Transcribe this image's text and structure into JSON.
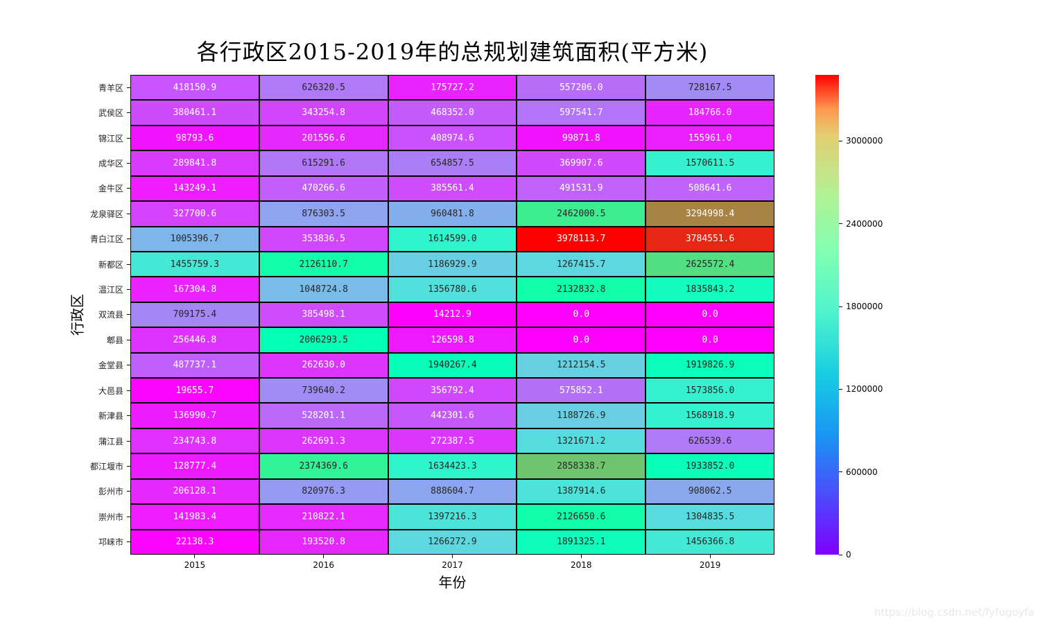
{
  "chart_data": {
    "type": "heatmap",
    "title": "各行政区2015-2019年的总规划建筑面积(平方米)",
    "xlabel": "年份",
    "ylabel": "行政区",
    "colormap": "rainbow",
    "vmin": 0,
    "vmax": 3978113.7,
    "categories": [
      "2015",
      "2016",
      "2017",
      "2018",
      "2019"
    ],
    "rows": [
      "青羊区",
      "武侯区",
      "锦江区",
      "成华区",
      "金牛区",
      "龙泉驿区",
      "青白江区",
      "新都区",
      "温江区",
      "双流县",
      "郫县",
      "金堂县",
      "大邑县",
      "新津县",
      "蒲江县",
      "都江堰市",
      "彭州市",
      "崇州市",
      "邛崃市"
    ],
    "values": [
      [
        418150.9,
        626320.5,
        175727.2,
        557206.0,
        728167.5
      ],
      [
        380461.1,
        343254.8,
        468352.0,
        597541.7,
        184766.0
      ],
      [
        98793.6,
        201556.6,
        408974.6,
        99871.8,
        155961.0
      ],
      [
        289841.8,
        615291.6,
        654857.5,
        369907.6,
        1570611.5
      ],
      [
        143249.1,
        470266.6,
        385561.4,
        491531.9,
        508641.6
      ],
      [
        327700.6,
        876303.5,
        960481.8,
        2462000.5,
        3294998.4
      ],
      [
        1005396.7,
        353836.5,
        1614599.0,
        3978113.7,
        3784551.6
      ],
      [
        1455759.3,
        2126110.7,
        1186929.9,
        1267415.7,
        2625572.4
      ],
      [
        167304.8,
        1048724.8,
        1356780.6,
        2132832.8,
        1835843.2
      ],
      [
        709175.4,
        385498.1,
        14212.9,
        0.0,
        0.0
      ],
      [
        256446.8,
        2006293.5,
        126598.8,
        0.0,
        0.0
      ],
      [
        487737.1,
        262630.0,
        1940267.4,
        1212154.5,
        1919826.9
      ],
      [
        19655.7,
        739640.2,
        356792.4,
        575852.1,
        1573856.0
      ],
      [
        136990.7,
        528201.1,
        442301.6,
        1188726.9,
        1568918.9
      ],
      [
        234743.8,
        262691.3,
        272387.5,
        1321671.2,
        626539.6
      ],
      [
        128777.4,
        2374369.6,
        1634423.3,
        2858338.7,
        1933852.0
      ],
      [
        206128.1,
        820976.3,
        888604.7,
        1387914.6,
        908062.5
      ],
      [
        141983.4,
        210822.1,
        1397216.3,
        2126650.6,
        1304835.5
      ],
      [
        22138.3,
        193520.8,
        1266272.9,
        1891325.1,
        1456366.8
      ]
    ],
    "colorbar_ticks": [
      "0",
      "600000",
      "1200000",
      "1800000",
      "2400000",
      "3000000"
    ],
    "annotations": true,
    "annotation_format": ".1f",
    "legend_position": "right"
  },
  "watermark": "https://blog.csdn.net/fyfugoyfa"
}
